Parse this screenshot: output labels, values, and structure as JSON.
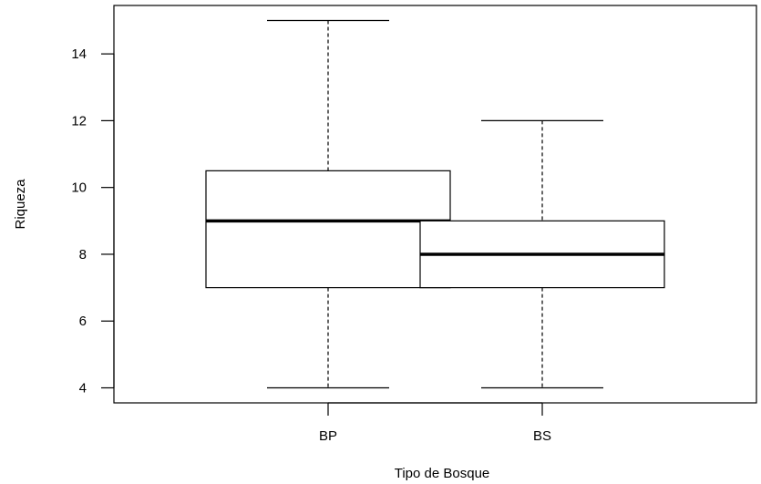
{
  "chart_data": {
    "type": "boxplot",
    "title": "",
    "xlabel": "Tipo de Bosque",
    "ylabel": "Riqueza",
    "ylim": [
      3.55,
      15.45
    ],
    "y_ticks": [
      4,
      6,
      8,
      10,
      12,
      14
    ],
    "y_tick_labels": [
      "4",
      "6",
      "8",
      "10",
      "12",
      "14"
    ],
    "categories": [
      "BP",
      "BS"
    ],
    "boxes": [
      {
        "category": "BP",
        "min": 4,
        "q1": 7,
        "median": 9,
        "q3": 10.5,
        "max": 15
      },
      {
        "category": "BS",
        "min": 4,
        "q1": 7,
        "median": 8,
        "q3": 9,
        "max": 12
      }
    ],
    "grid": false,
    "colors": {
      "box_fill": "#ffffff",
      "stroke": "#000000"
    }
  }
}
